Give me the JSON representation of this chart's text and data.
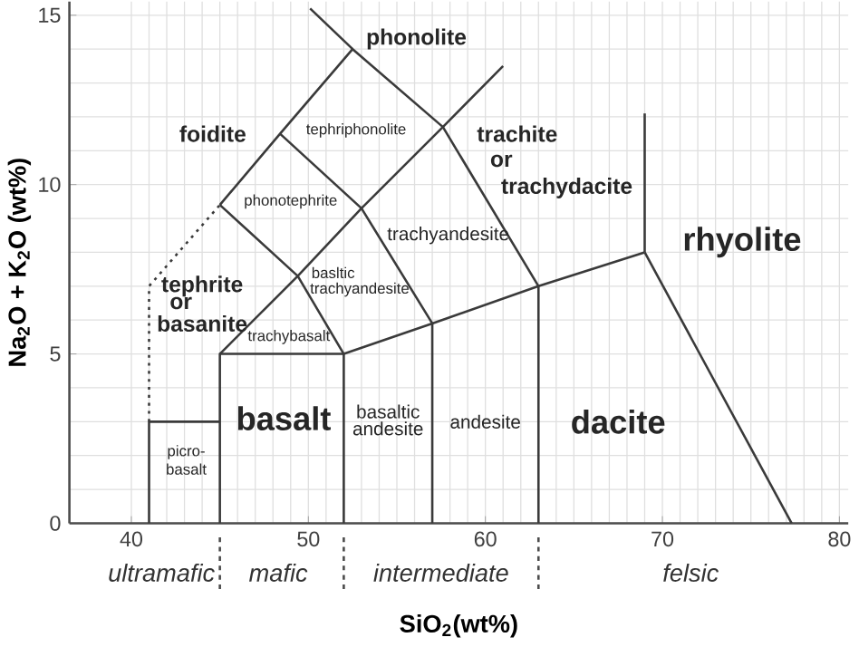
{
  "chart_data": {
    "type": "line",
    "xlabel": "SiO$_{2}$(wt%)",
    "ylabel": "Na$_{2}$O + K$_{2}$O (wt%)",
    "xlim": [
      36.5,
      80.5
    ],
    "ylim": [
      0,
      15.4
    ],
    "xticks": [
      40,
      50,
      60,
      70,
      80
    ],
    "yticks": [
      0,
      5,
      10,
      15
    ],
    "grid": true,
    "marker": "none",
    "line_style": "solid",
    "series": [
      {
        "color": "#3a3a3a",
        "x": [
          41,
          41,
          45
        ],
        "values": [
          0,
          3,
          3
        ]
      },
      {
        "color": "#3a3a3a",
        "x": [
          45,
          45,
          52,
          52
        ],
        "values": [
          0,
          5,
          5,
          0
        ]
      },
      {
        "color": "#3a3a3a",
        "x": [
          52,
          57,
          63,
          69
        ],
        "values": [
          5,
          5.9,
          7,
          8
        ]
      },
      {
        "color": "#3a3a3a",
        "x": [
          57,
          57
        ],
        "values": [
          0,
          5.9
        ]
      },
      {
        "color": "#3a3a3a",
        "x": [
          63,
          63
        ],
        "values": [
          0,
          7
        ]
      },
      {
        "color": "#3a3a3a",
        "x": [
          69,
          69
        ],
        "values": [
          12.1,
          8
        ]
      },
      {
        "color": "#3a3a3a",
        "x": [
          69,
          77.3
        ],
        "values": [
          8,
          0
        ]
      },
      {
        "color": "#3a3a3a",
        "x": [
          45,
          49.4,
          53,
          57.6,
          61
        ],
        "values": [
          5,
          7.3,
          9.3,
          11.7,
          13.5
        ]
      },
      {
        "color": "#3a3a3a",
        "x": [
          52,
          49.4,
          45
        ],
        "values": [
          5,
          7.3,
          9.4
        ]
      },
      {
        "color": "#3a3a3a",
        "x": [
          57,
          53,
          48.4
        ],
        "values": [
          5.9,
          9.3,
          11.5
        ]
      },
      {
        "color": "#3a3a3a",
        "x": [
          45,
          48.4,
          52.5,
          57.6,
          63
        ],
        "values": [
          9.4,
          11.5,
          14,
          11.7,
          7
        ]
      },
      {
        "color": "#3a3a3a",
        "x": [
          50.1,
          52.5
        ],
        "values": [
          15.2,
          14
        ]
      },
      {
        "color": "#3a3a3a",
        "x": [
          41,
          41,
          45
        ],
        "values": [
          3,
          7,
          9.4
        ],
        "line_style": "dotted"
      }
    ],
    "annotations": [
      "phonolite",
      "foidite",
      "tephriphonolite",
      "trachite",
      "or",
      "trachydacite",
      "phonotephrite",
      "trachyandesite",
      "rhyolite",
      "basltic",
      "trachyandesite",
      "tephrite",
      "or",
      "basanite",
      "trachybasalt",
      "basalt",
      "basaltic",
      "andesite",
      "andesite",
      "dacite",
      "picro-",
      "basalt",
      "ultramafic",
      "mafic",
      "intermediate",
      "felsic"
    ]
  }
}
